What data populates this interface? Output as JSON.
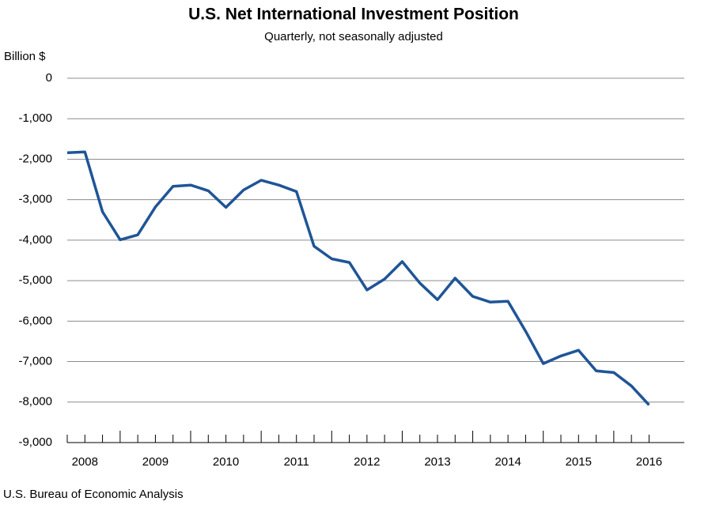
{
  "chart_data": {
    "type": "line",
    "title": "U.S. Net International Investment Position",
    "subtitle": "Quarterly, not seasonally adjusted",
    "y_label": "Billion $",
    "source": "U.S. Bureau of Economic Analysis",
    "categories": [
      null,
      "2008",
      null,
      null,
      null,
      "2009",
      null,
      null,
      null,
      "2010",
      null,
      null,
      null,
      "2011",
      null,
      null,
      null,
      "2012",
      null,
      null,
      null,
      "2013",
      null,
      null,
      null,
      "2014",
      null,
      null,
      null,
      "2015",
      null,
      null,
      null,
      "2016"
    ],
    "series": [
      {
        "name": "Net International Investment Position",
        "color": "#1f5597",
        "values": [
          -1840,
          -1820,
          -3300,
          -3990,
          -3870,
          -3180,
          -2670,
          -2640,
          -2780,
          -3190,
          -2760,
          -2520,
          -2640,
          -2800,
          -4150,
          -4460,
          -4550,
          -5230,
          -4960,
          -4530,
          -5060,
          -5470,
          -4940,
          -5390,
          -5530,
          -5510,
          -6250,
          -7050,
          -6860,
          -6720,
          -7230,
          -7270,
          -7600,
          -8070
        ]
      }
    ],
    "ylim": [
      -9000,
      0
    ],
    "yticks": [
      0,
      {
        "value": -1000,
        "label": "-1,000"
      },
      {
        "value": -2000,
        "label": "-2,000"
      },
      {
        "value": -3000,
        "label": "-3,000"
      },
      {
        "value": -4000,
        "label": "-4,000"
      },
      {
        "value": -5000,
        "label": "-5,000"
      },
      {
        "value": -6000,
        "label": "-6,000"
      },
      {
        "value": -7000,
        "label": "-7,000"
      },
      {
        "value": -8000,
        "label": "-8,000"
      },
      {
        "value": -9000,
        "label": "-9,000"
      }
    ],
    "grid": true
  }
}
